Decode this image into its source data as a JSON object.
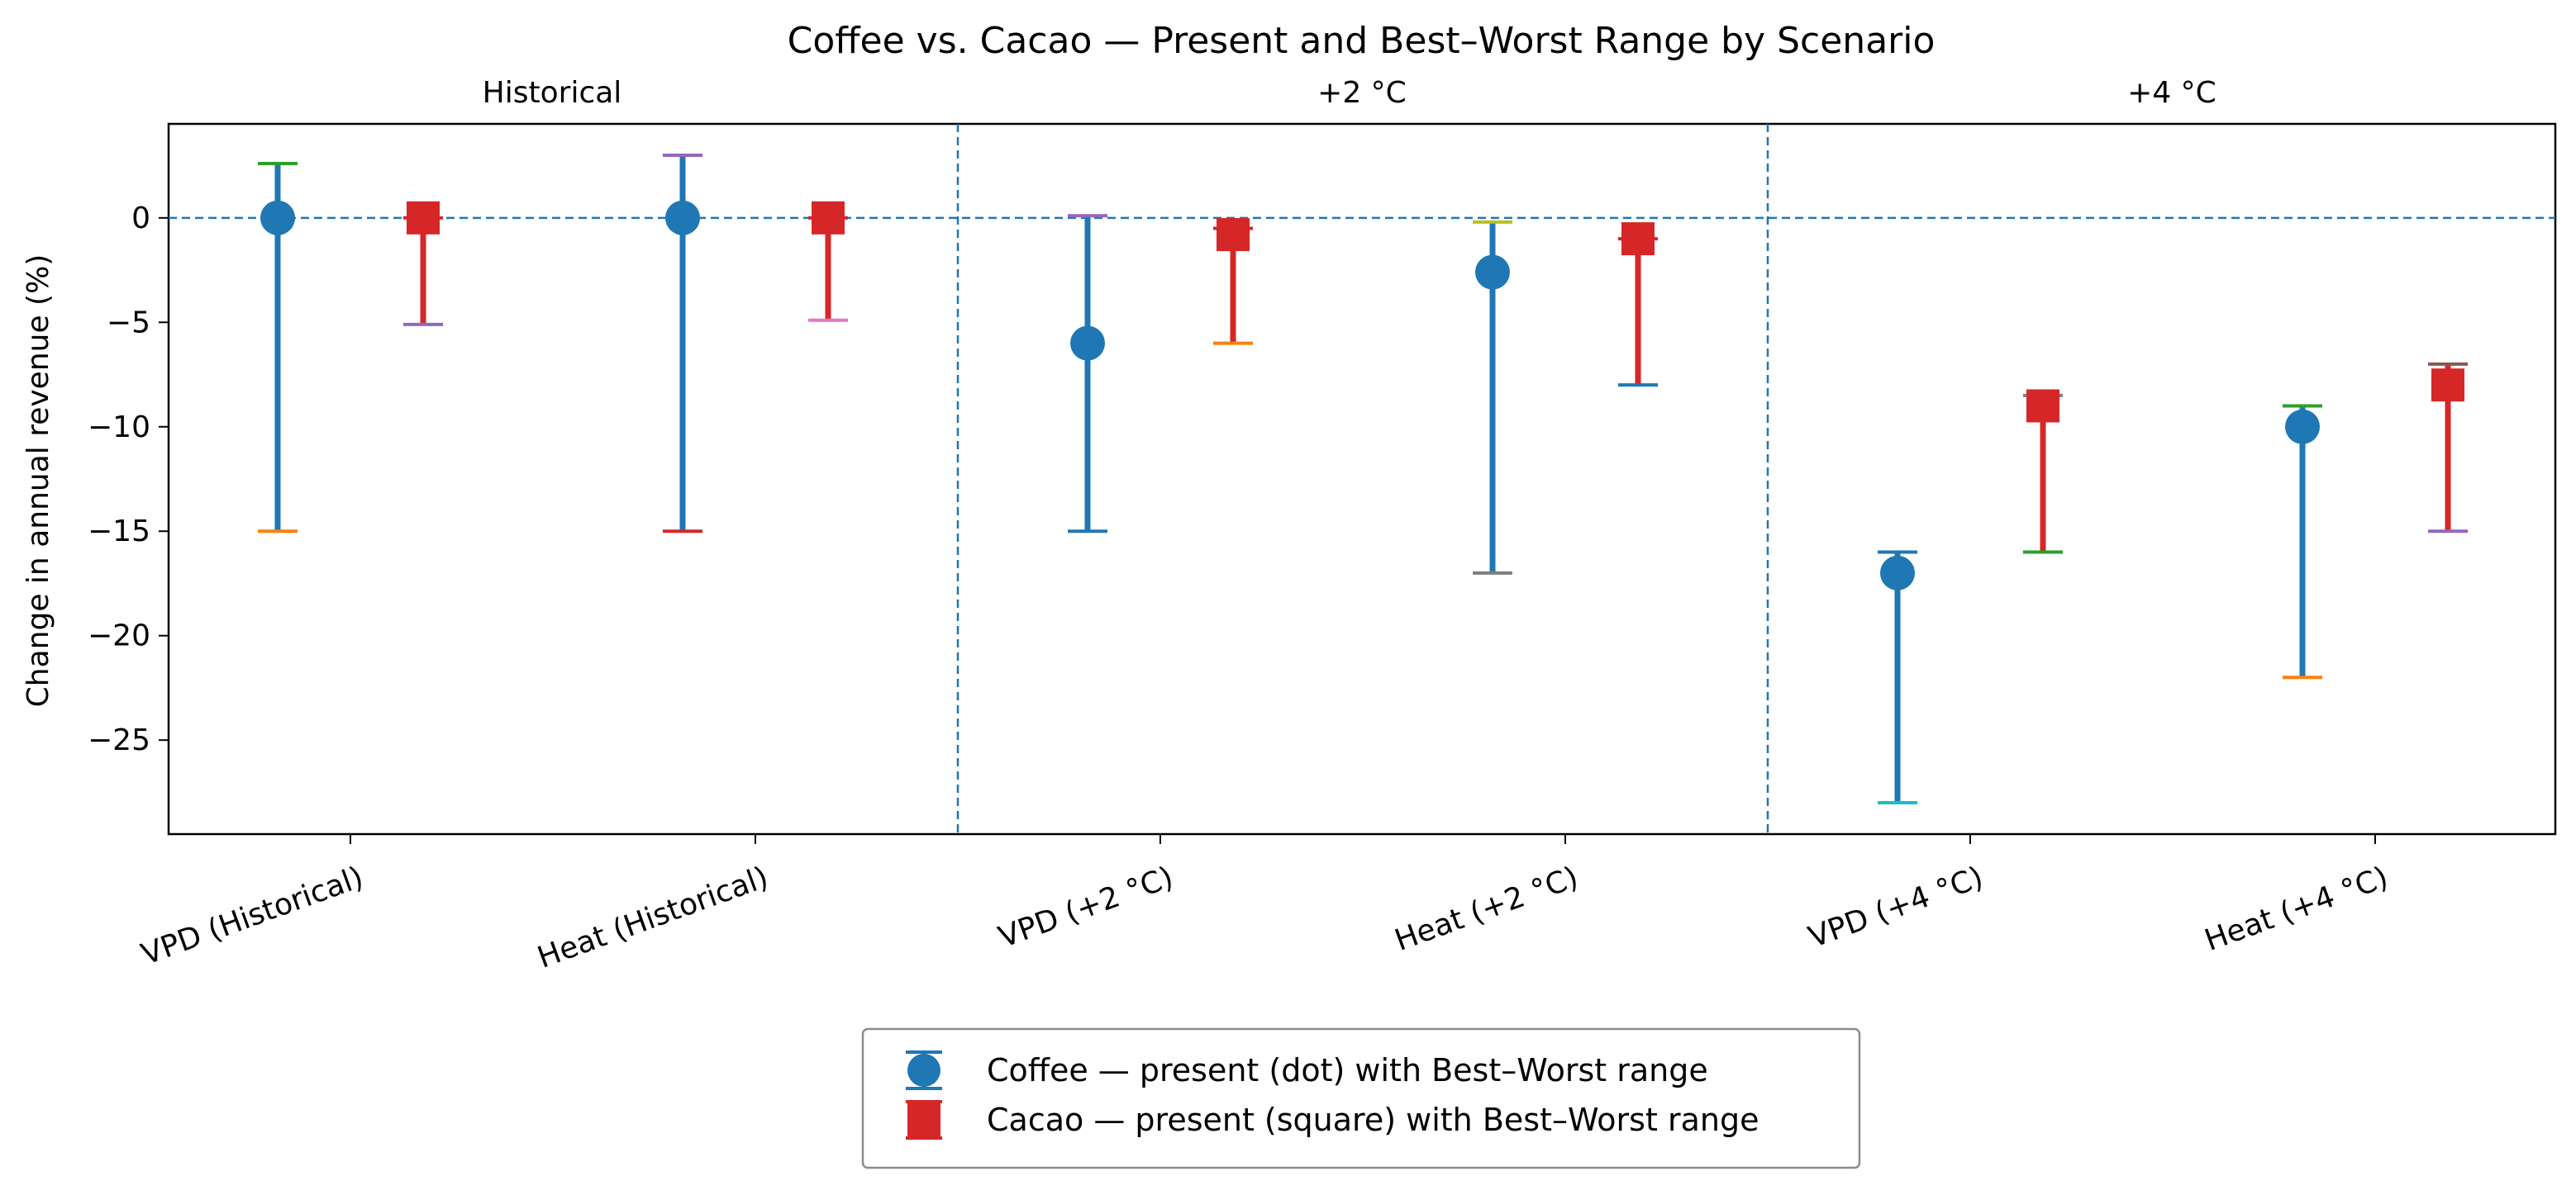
{
  "chart_data": {
    "type": "errorbar",
    "title": "Coffee vs. Cacao — Present and Best–Worst Range by Scenario",
    "ylabel": "Change in annual revenue (%)",
    "xlabel": "",
    "ylim": [
      -29.5,
      4.5
    ],
    "yticks": [
      0,
      -5,
      -10,
      -15,
      -20,
      -25
    ],
    "ytick_labels": [
      "0",
      "−5",
      "−10",
      "−15",
      "−20",
      "−25"
    ],
    "reference_line_y": 0,
    "grid": false,
    "legend_position": "bottom-center",
    "panels": [
      "Historical",
      "+2 °C",
      "+4 °C"
    ],
    "categories": [
      "VPD (Historical)",
      "Heat (Historical)",
      "VPD (+2 °C)",
      "Heat (+2 °C)",
      "VPD (+4 °C)",
      "Heat (+4 °C)"
    ],
    "series": [
      {
        "name": "Coffee — present (dot) with Best–Worst range",
        "marker": "circle",
        "color": "#1f77b4",
        "present": [
          0,
          0,
          -6,
          -2.6,
          -17,
          -10
        ],
        "best": [
          2.6,
          3,
          0.1,
          -0.2,
          -16,
          -9
        ],
        "worst": [
          -15,
          -15,
          -15,
          -17,
          -28,
          -22
        ]
      },
      {
        "name": "Cacao — present (square) with Best–Worst range",
        "marker": "square",
        "color": "#d62728",
        "present": [
          0,
          0,
          -0.8,
          -1.0,
          -9,
          -8
        ],
        "best": [
          0,
          0,
          -0.5,
          -1.0,
          -8.5,
          -7
        ],
        "worst": [
          -5.1,
          -4.9,
          -6,
          -8,
          -16,
          -15
        ]
      }
    ],
    "cap_colors": {
      "best": [
        "#2ca02c",
        "#9467bd",
        "#9467bd",
        "#bcbd22",
        "#1f77b4",
        "#2ca02c"
      ],
      "worst": [
        "#ff7f0e",
        "#d62728",
        "#1f77b4",
        "#7f7f7f",
        "#17becf",
        "#ff7f0e"
      ],
      "cacao_best": [
        "#d62728",
        "#d62728",
        "#d62728",
        "#d62728",
        "#7f7f7f",
        "#8c564b"
      ],
      "cacao_worst": [
        "#9467bd",
        "#e377c2",
        "#ff7f0e",
        "#1f77b4",
        "#2ca02c",
        "#9467bd"
      ]
    }
  }
}
